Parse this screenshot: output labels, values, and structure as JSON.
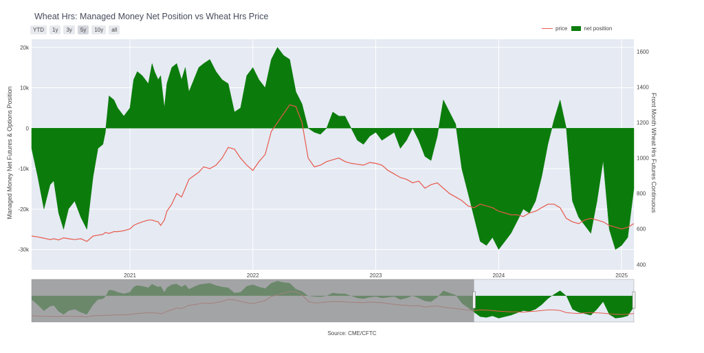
{
  "header": {
    "title": "Wheat Hrs: Managed Money Net Position vs Wheat Hrs Price"
  },
  "range_buttons": [
    {
      "label": "YTD",
      "active": false
    },
    {
      "label": "1y",
      "active": false
    },
    {
      "label": "3y",
      "active": false
    },
    {
      "label": "5y",
      "active": true
    },
    {
      "label": "10y",
      "active": false
    },
    {
      "label": "all",
      "active": false
    }
  ],
  "source": "Source: CME/CFTC",
  "colors": {
    "net_position": "#0b7c0b",
    "price": "#e8584a",
    "plot_bg": "#e5eaf3",
    "grid": "#ffffff",
    "navigator_mask": "#8c8c8c"
  },
  "chart_data": {
    "type": "area",
    "title": "Wheat Hrs: Managed Money Net Position vs Wheat Hrs Price",
    "y_left_label": "Managed Money Net Futures & Options Position",
    "y_right_label": "Front Month Wheat Hrs Futures Continuous",
    "y_left_ticks": [
      "20k",
      "10k",
      "0",
      "-10k",
      "-20k",
      "-30k"
    ],
    "y_left_tick_values": [
      20000,
      10000,
      0,
      -10000,
      -20000,
      -30000
    ],
    "y_right_ticks": [
      "1600",
      "1400",
      "1200",
      "1000",
      "800",
      "600",
      "400"
    ],
    "y_right_tick_values": [
      1600,
      1400,
      1200,
      1000,
      800,
      600,
      400
    ],
    "x_ticks": [
      "2021",
      "2022",
      "2023",
      "2024",
      "2025"
    ],
    "x_tick_values": [
      2021.0,
      2022.0,
      2023.0,
      2024.0,
      2025.0
    ],
    "xlim": [
      2020.2,
      2025.1
    ],
    "ylim_left": [
      -35000,
      22000
    ],
    "ylim_right": [
      370,
      1670
    ],
    "grid": true,
    "legend_position": "top-right",
    "series": [
      {
        "name": "net position",
        "kind": "area",
        "axis": "left",
        "x": [
          2020.2,
          2020.25,
          2020.3,
          2020.35,
          2020.38,
          2020.42,
          2020.46,
          2020.5,
          2020.55,
          2020.6,
          2020.65,
          2020.7,
          2020.74,
          2020.78,
          2020.8,
          2020.83,
          2020.87,
          2020.9,
          2020.95,
          2021.0,
          2021.03,
          2021.06,
          2021.1,
          2021.15,
          2021.18,
          2021.2,
          2021.23,
          2021.25,
          2021.28,
          2021.3,
          2021.34,
          2021.38,
          2021.42,
          2021.45,
          2021.48,
          2021.52,
          2021.56,
          2021.6,
          2021.65,
          2021.7,
          2021.75,
          2021.8,
          2021.85,
          2021.9,
          2021.95,
          2022.0,
          2022.05,
          2022.1,
          2022.15,
          2022.2,
          2022.25,
          2022.3,
          2022.35,
          2022.4,
          2022.45,
          2022.5,
          2022.55,
          2022.6,
          2022.65,
          2022.7,
          2022.75,
          2022.8,
          2022.85,
          2022.9,
          2022.95,
          2023.0,
          2023.05,
          2023.1,
          2023.15,
          2023.2,
          2023.25,
          2023.3,
          2023.35,
          2023.4,
          2023.45,
          2023.5,
          2023.55,
          2023.6,
          2023.65,
          2023.7,
          2023.75,
          2023.8,
          2023.85,
          2023.9,
          2023.95,
          2024.0,
          2024.05,
          2024.1,
          2024.15,
          2024.2,
          2024.25,
          2024.3,
          2024.35,
          2024.4,
          2024.45,
          2024.5,
          2024.55,
          2024.6,
          2024.65,
          2024.7,
          2024.75,
          2024.8,
          2024.85,
          2024.9,
          2024.95,
          2025.0,
          2025.05,
          2025.1
        ],
        "values": [
          -5000,
          -12000,
          -20000,
          -14000,
          -13000,
          -21000,
          -25000,
          -20000,
          -18000,
          -22000,
          -25000,
          -12000,
          -5000,
          -4000,
          -1000,
          8000,
          7000,
          5000,
          3000,
          5000,
          12000,
          14000,
          13000,
          11000,
          16000,
          14000,
          12000,
          13000,
          5000,
          11000,
          15000,
          16000,
          12000,
          15000,
          9000,
          12000,
          15000,
          16000,
          17000,
          14000,
          12000,
          11000,
          4000,
          5000,
          13000,
          15000,
          12000,
          10000,
          17000,
          20000,
          18000,
          17000,
          9000,
          6000,
          0,
          -1000,
          -1500,
          0,
          4000,
          3000,
          3000,
          0,
          -3000,
          -4000,
          -2000,
          -1000,
          -3000,
          -2000,
          -1000,
          -5000,
          -3000,
          0,
          -3000,
          -7000,
          -8000,
          -2000,
          7000,
          4000,
          1000,
          -10000,
          -16000,
          -22000,
          -28000,
          -29000,
          -27000,
          -30000,
          -28000,
          -26000,
          -23000,
          -20000,
          -21000,
          -18000,
          -12000,
          -4000,
          2000,
          7000,
          0,
          -18000,
          -22000,
          -24000,
          -26000,
          -18000,
          -8000,
          -25000,
          -30000,
          -29000,
          -27000,
          -15000
        ]
      },
      {
        "name": "price",
        "kind": "line",
        "axis": "right",
        "x": [
          2020.2,
          2020.25,
          2020.3,
          2020.35,
          2020.38,
          2020.42,
          2020.46,
          2020.5,
          2020.55,
          2020.6,
          2020.65,
          2020.7,
          2020.74,
          2020.78,
          2020.8,
          2020.83,
          2020.87,
          2020.9,
          2020.95,
          2021.0,
          2021.03,
          2021.06,
          2021.1,
          2021.15,
          2021.18,
          2021.2,
          2021.23,
          2021.25,
          2021.28,
          2021.3,
          2021.34,
          2021.38,
          2021.42,
          2021.45,
          2021.48,
          2021.52,
          2021.56,
          2021.6,
          2021.65,
          2021.7,
          2021.75,
          2021.8,
          2021.85,
          2021.9,
          2021.95,
          2022.0,
          2022.05,
          2022.1,
          2022.15,
          2022.2,
          2022.25,
          2022.3,
          2022.35,
          2022.4,
          2022.45,
          2022.5,
          2022.55,
          2022.6,
          2022.65,
          2022.7,
          2022.75,
          2022.8,
          2022.85,
          2022.9,
          2022.95,
          2023.0,
          2023.05,
          2023.1,
          2023.15,
          2023.2,
          2023.25,
          2023.3,
          2023.35,
          2023.4,
          2023.45,
          2023.5,
          2023.55,
          2023.6,
          2023.65,
          2023.7,
          2023.75,
          2023.8,
          2023.85,
          2023.9,
          2023.95,
          2024.0,
          2024.05,
          2024.1,
          2024.15,
          2024.2,
          2024.25,
          2024.3,
          2024.35,
          2024.4,
          2024.45,
          2024.5,
          2024.55,
          2024.6,
          2024.65,
          2024.7,
          2024.75,
          2024.8,
          2024.85,
          2024.9,
          2024.95,
          2025.0,
          2025.05,
          2025.1
        ],
        "values": [
          560,
          555,
          548,
          540,
          545,
          538,
          550,
          545,
          540,
          545,
          530,
          560,
          565,
          570,
          580,
          575,
          585,
          585,
          590,
          600,
          620,
          630,
          640,
          650,
          650,
          645,
          640,
          620,
          650,
          700,
          740,
          800,
          780,
          830,
          880,
          900,
          920,
          950,
          940,
          960,
          1000,
          1060,
          1050,
          1000,
          960,
          930,
          980,
          1020,
          1150,
          1200,
          1250,
          1300,
          1290,
          1200,
          1000,
          950,
          960,
          980,
          990,
          1000,
          980,
          970,
          965,
          960,
          975,
          970,
          960,
          930,
          910,
          890,
          880,
          860,
          870,
          830,
          850,
          860,
          830,
          800,
          780,
          760,
          730,
          720,
          740,
          730,
          720,
          700,
          690,
          680,
          680,
          670,
          690,
          700,
          720,
          740,
          740,
          720,
          660,
          640,
          630,
          650,
          660,
          650,
          640,
          620,
          610,
          600,
          610,
          630
        ]
      }
    ]
  }
}
